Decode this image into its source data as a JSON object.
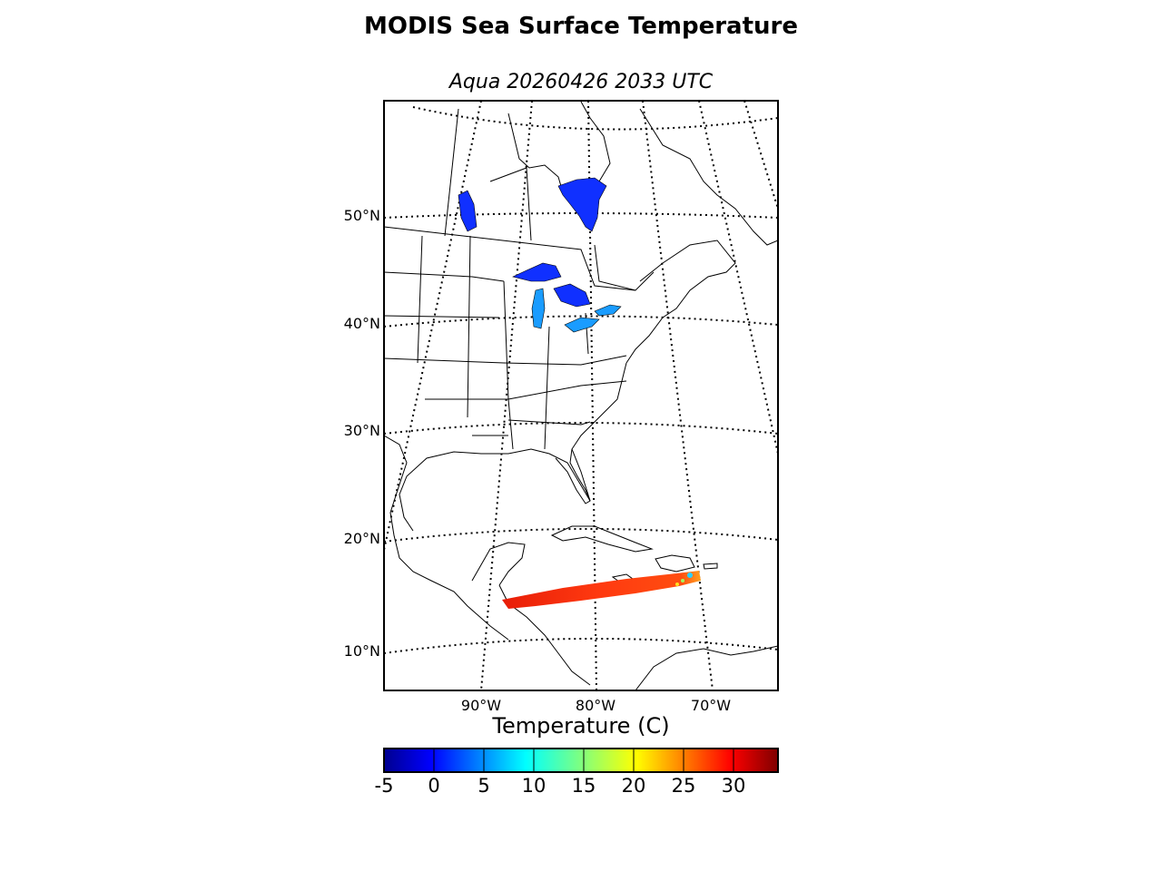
{
  "title": "MODIS Sea Surface Temperature",
  "subtitle": "Aqua 20260426 2033 UTC",
  "lat_labels": [
    "50°N",
    "40°N",
    "30°N",
    "20°N",
    "10°N"
  ],
  "lon_labels": [
    "90°W",
    "80°W",
    "70°W"
  ],
  "colorbar": {
    "title": "Temperature (C)",
    "ticks": [
      "-5",
      "0",
      "5",
      "10",
      "15",
      "20",
      "25",
      "30"
    ],
    "range": [
      -5,
      34
    ],
    "colormap": "jet"
  },
  "colors": {
    "lake_cold": "#1030ff",
    "lake_mid": "#1a9cff",
    "swath_warm": "#ff3a10",
    "swath_hot": "#e81e08"
  }
}
